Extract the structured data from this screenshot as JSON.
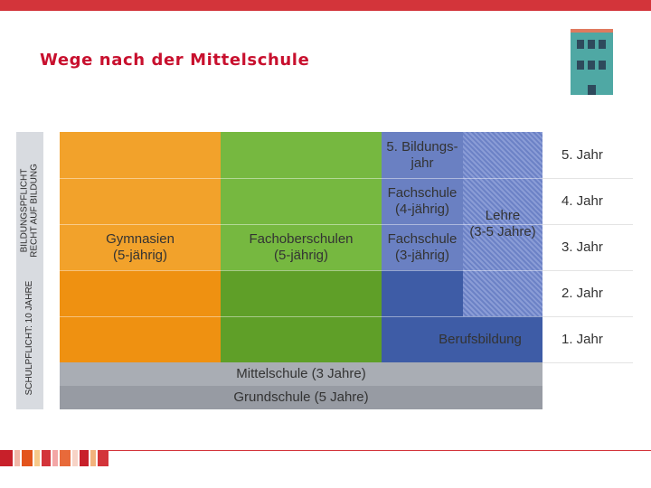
{
  "header": {
    "title": "Wege nach der Mittelschule"
  },
  "logo": {
    "icon": "school-building-icon"
  },
  "diagram": {
    "side_labels": {
      "upper": "BILDUNGSPFLICHT\nRECHT AUF BILDUNG",
      "lower": "SCHULPFLICHT: 10 JAHRE"
    },
    "paths": {
      "gymnasien": "Gymnasien\n(5-jährig)",
      "fachoberschulen": "Fachoberschulen\n(5-jährig)",
      "bildungsjahr": "5. Bildungs-\njahr",
      "fachschule_4": "Fachschule\n(4-jährig)",
      "fachschule_3": "Fachschule\n(3-jährig)",
      "lehre": "Lehre\n(3-5 Jahre)",
      "berufsbildung": "Berufsbildung",
      "mittelschule": "Mittelschule (3 Jahre)",
      "grundschule": "Grundschule (5 Jahre)"
    },
    "years": [
      "5. Jahr",
      "4. Jahr",
      "3. Jahr",
      "2. Jahr",
      "1. Jahr"
    ]
  },
  "colors": {
    "accent_red": "#d3343a",
    "gymnasien_light": "#f2a22b",
    "gymnasien_dark": "#ef9111",
    "fachober_light": "#76b840",
    "fachober_dark": "#5f9f28",
    "vocational_light": "#6a80c2",
    "vocational_dark": "#3e5ca6",
    "lehre_hatch": "#7f92cf",
    "mittelschule": "#a9adb4",
    "grundschule": "#979ba3"
  }
}
